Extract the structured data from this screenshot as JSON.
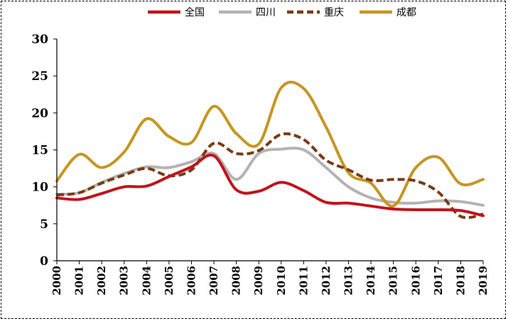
{
  "chart_data": {
    "type": "line",
    "title": "",
    "xlabel": "",
    "ylabel": "",
    "ylim": [
      0,
      30
    ],
    "yticks": [
      "0",
      "5",
      "10",
      "15",
      "20",
      "25",
      "30"
    ],
    "categories": [
      "2000",
      "2001",
      "2002",
      "2003",
      "2004",
      "2005",
      "2006",
      "2007",
      "2008",
      "2009",
      "2010",
      "2011",
      "2012",
      "2013",
      "2014",
      "2015",
      "2016",
      "2017",
      "2018",
      "2019"
    ],
    "legend_position": "top",
    "grid": false,
    "series": [
      {
        "name": "全国",
        "color": "#c0141c",
        "style": "solid",
        "values": [
          8.5,
          8.3,
          9.1,
          10.0,
          10.1,
          11.4,
          12.7,
          14.2,
          9.6,
          9.4,
          10.6,
          9.5,
          7.9,
          7.8,
          7.4,
          7.0,
          6.9,
          6.9,
          6.8,
          6.1
        ]
      },
      {
        "name": "四川",
        "color": "#b3b3b3",
        "style": "solid",
        "values": [
          9.0,
          9.2,
          10.6,
          11.8,
          12.7,
          12.6,
          13.4,
          14.5,
          11.0,
          14.5,
          15.1,
          15.0,
          12.6,
          10.0,
          8.5,
          7.9,
          7.8,
          8.1,
          8.0,
          7.5
        ]
      },
      {
        "name": "重庆",
        "color": "#7a3b14",
        "style": "dashed",
        "values": [
          8.9,
          9.2,
          10.5,
          11.6,
          12.5,
          11.5,
          12.3,
          15.9,
          14.5,
          14.9,
          17.1,
          16.4,
          13.6,
          12.3,
          10.9,
          11.0,
          10.8,
          9.3,
          6.0,
          6.3
        ]
      },
      {
        "name": "成都",
        "color": "#c6961f",
        "style": "solid",
        "values": [
          10.8,
          14.4,
          12.6,
          14.7,
          19.2,
          16.8,
          16.0,
          20.9,
          17.2,
          15.8,
          23.4,
          23.3,
          18.1,
          11.9,
          10.5,
          7.4,
          12.6,
          14.0,
          10.4,
          11.0
        ]
      }
    ]
  }
}
